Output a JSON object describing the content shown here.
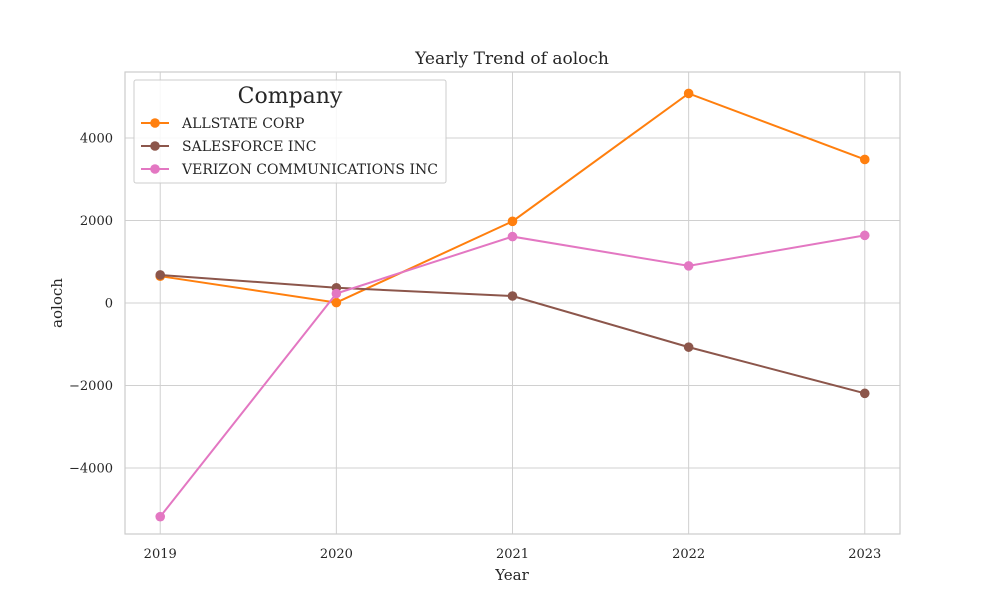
{
  "chart_data": {
    "type": "line",
    "title": "Yearly Trend of aoloch",
    "xlabel": "Year",
    "ylabel": "aoloch",
    "x": [
      2019,
      2020,
      2021,
      2022,
      2023
    ],
    "x_tick_labels": [
      "2019",
      "2020",
      "2021",
      "2022",
      "2023"
    ],
    "xlim": [
      2018.8,
      2023.2
    ],
    "ylim": [
      -5600,
      5600
    ],
    "y_ticks": [
      -4000,
      -2000,
      0,
      2000,
      4000
    ],
    "y_tick_labels": [
      "−4000",
      "−2000",
      "0",
      "2000",
      "4000"
    ],
    "grid": true,
    "legend": {
      "title": "Company",
      "placement": "top-left"
    },
    "series": [
      {
        "name": "ALLSTATE CORP",
        "color": "#ff7f0e",
        "values": [
          650,
          10,
          1980,
          5080,
          3480
        ]
      },
      {
        "name": "SALESFORCE INC",
        "color": "#8c564b",
        "values": [
          680,
          370,
          170,
          -1070,
          -2190
        ]
      },
      {
        "name": "VERIZON COMMUNICATIONS INC",
        "color": "#e377c2",
        "values": [
          -5180,
          230,
          1610,
          900,
          1640
        ]
      }
    ]
  }
}
